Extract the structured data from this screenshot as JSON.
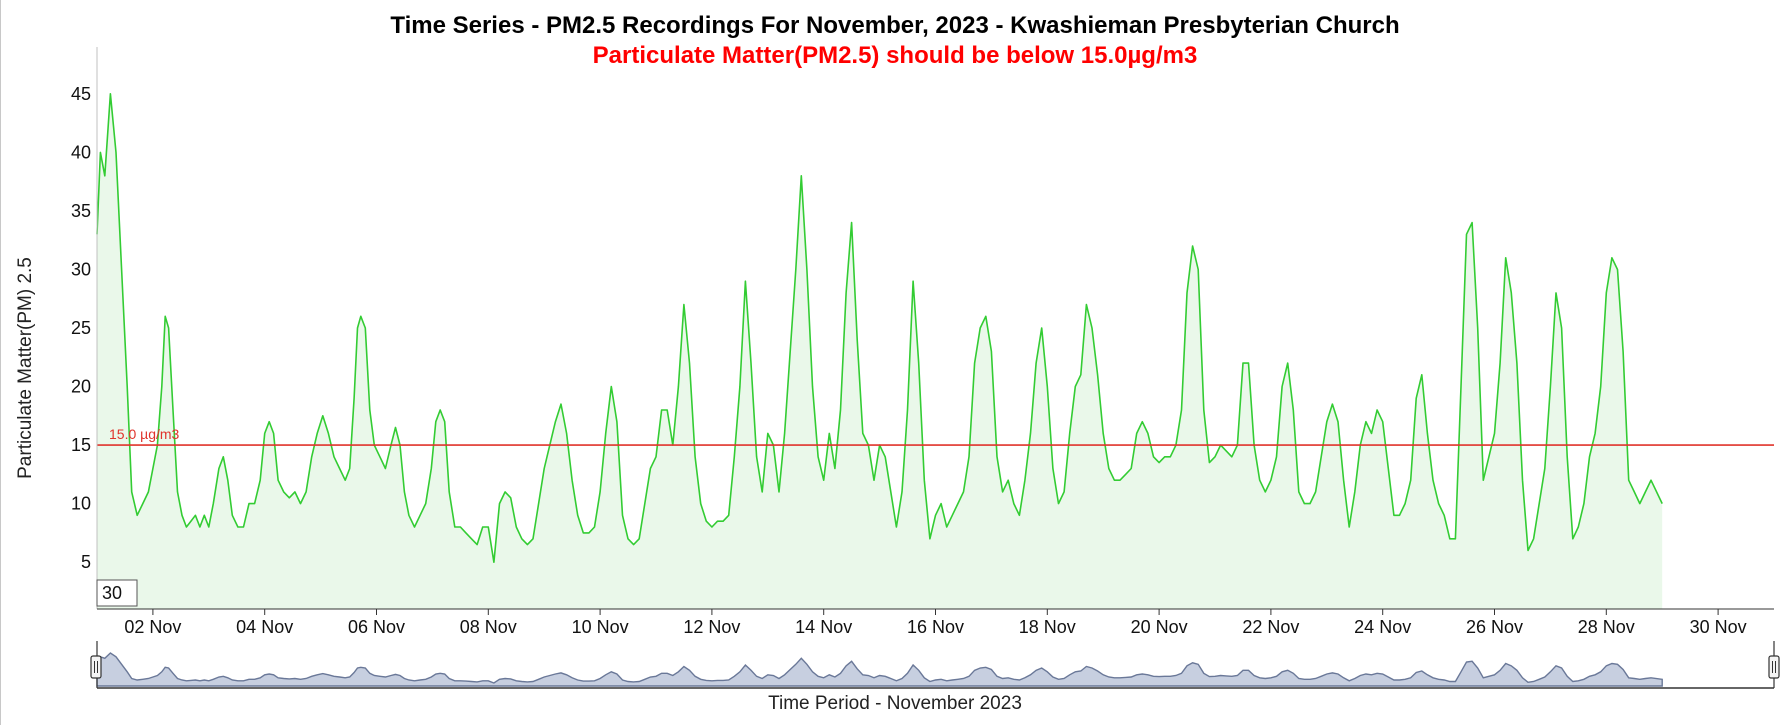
{
  "chart_data": {
    "type": "area",
    "title": "Time Series - PM2.5 Recordings For November, 2023 - Kwashieman Presbyterian Church",
    "subtitle": "Particulate Matter(PM2.5) should be below 15.0µg/m3",
    "ylabel": "Particulate Matter(PM) 2.5",
    "xlabel": "Time Period - November 2023",
    "ylim": [
      1,
      49
    ],
    "xlim_days": [
      1.0,
      31.0
    ],
    "y_ticks": [
      "5",
      "10",
      "15",
      "20",
      "25",
      "30",
      "35",
      "40",
      "45"
    ],
    "x_ticks": [
      "02 Nov",
      "04 Nov",
      "06 Nov",
      "08 Nov",
      "10 Nov",
      "12 Nov",
      "14 Nov",
      "16 Nov",
      "18 Nov",
      "20 Nov",
      "22 Nov",
      "24 Nov",
      "26 Nov",
      "28 Nov",
      "30 Nov"
    ],
    "grid": false,
    "line_color": "#33cc33",
    "fill_color": "#eaf8ea",
    "threshold": {
      "value": 15.0,
      "label": "15.0 µg/m3",
      "color": "#e0342c"
    },
    "series": [
      {
        "values": [
          [
            1.0,
            33
          ],
          [
            1.06,
            40
          ],
          [
            1.14,
            38
          ],
          [
            1.24,
            45
          ],
          [
            1.34,
            40
          ],
          [
            1.44,
            30
          ],
          [
            1.54,
            20
          ],
          [
            1.62,
            11
          ],
          [
            1.72,
            9
          ],
          [
            1.82,
            10
          ],
          [
            1.92,
            11
          ],
          [
            2.0,
            13
          ],
          [
            2.08,
            15
          ],
          [
            2.16,
            20
          ],
          [
            2.22,
            26
          ],
          [
            2.28,
            25
          ],
          [
            2.36,
            18
          ],
          [
            2.44,
            11
          ],
          [
            2.52,
            9
          ],
          [
            2.6,
            8
          ],
          [
            2.68,
            8.5
          ],
          [
            2.76,
            9
          ],
          [
            2.84,
            8
          ],
          [
            2.92,
            9
          ],
          [
            3.0,
            8
          ],
          [
            3.08,
            10
          ],
          [
            3.18,
            13
          ],
          [
            3.26,
            14
          ],
          [
            3.34,
            12
          ],
          [
            3.42,
            9
          ],
          [
            3.52,
            8
          ],
          [
            3.62,
            8
          ],
          [
            3.72,
            10
          ],
          [
            3.82,
            10
          ],
          [
            3.92,
            12
          ],
          [
            4.0,
            16
          ],
          [
            4.08,
            17
          ],
          [
            4.16,
            16
          ],
          [
            4.24,
            12
          ],
          [
            4.34,
            11
          ],
          [
            4.44,
            10.5
          ],
          [
            4.54,
            11
          ],
          [
            4.64,
            10
          ],
          [
            4.74,
            11
          ],
          [
            4.84,
            14
          ],
          [
            4.94,
            16
          ],
          [
            5.04,
            17.5
          ],
          [
            5.14,
            16
          ],
          [
            5.24,
            14
          ],
          [
            5.34,
            13
          ],
          [
            5.44,
            12
          ],
          [
            5.52,
            13
          ],
          [
            5.6,
            19
          ],
          [
            5.66,
            25
          ],
          [
            5.72,
            26
          ],
          [
            5.8,
            25
          ],
          [
            5.88,
            18
          ],
          [
            5.96,
            15
          ],
          [
            6.06,
            14
          ],
          [
            6.16,
            13
          ],
          [
            6.26,
            15
          ],
          [
            6.34,
            16.5
          ],
          [
            6.42,
            15
          ],
          [
            6.5,
            11
          ],
          [
            6.58,
            9
          ],
          [
            6.68,
            8
          ],
          [
            6.78,
            9
          ],
          [
            6.88,
            10
          ],
          [
            6.98,
            13
          ],
          [
            7.06,
            17
          ],
          [
            7.14,
            18
          ],
          [
            7.22,
            17
          ],
          [
            7.3,
            11
          ],
          [
            7.4,
            8
          ],
          [
            7.5,
            8
          ],
          [
            7.6,
            7.5
          ],
          [
            7.7,
            7
          ],
          [
            7.8,
            6.5
          ],
          [
            7.9,
            8
          ],
          [
            8.0,
            8
          ],
          [
            8.1,
            5
          ],
          [
            8.2,
            10
          ],
          [
            8.3,
            11
          ],
          [
            8.4,
            10.5
          ],
          [
            8.5,
            8
          ],
          [
            8.6,
            7
          ],
          [
            8.7,
            6.5
          ],
          [
            8.8,
            7
          ],
          [
            8.9,
            10
          ],
          [
            9.0,
            13
          ],
          [
            9.1,
            15
          ],
          [
            9.2,
            17
          ],
          [
            9.3,
            18.5
          ],
          [
            9.4,
            16
          ],
          [
            9.5,
            12
          ],
          [
            9.6,
            9
          ],
          [
            9.7,
            7.5
          ],
          [
            9.8,
            7.5
          ],
          [
            9.9,
            8
          ],
          [
            10.0,
            11
          ],
          [
            10.1,
            16
          ],
          [
            10.2,
            20
          ],
          [
            10.3,
            17
          ],
          [
            10.4,
            9
          ],
          [
            10.5,
            7
          ],
          [
            10.6,
            6.5
          ],
          [
            10.7,
            7
          ],
          [
            10.8,
            10
          ],
          [
            10.9,
            13
          ],
          [
            11.0,
            14
          ],
          [
            11.1,
            18
          ],
          [
            11.2,
            18
          ],
          [
            11.3,
            15
          ],
          [
            11.4,
            20
          ],
          [
            11.5,
            27
          ],
          [
            11.6,
            22
          ],
          [
            11.7,
            14
          ],
          [
            11.8,
            10
          ],
          [
            11.9,
            8.5
          ],
          [
            12.0,
            8
          ],
          [
            12.1,
            8.5
          ],
          [
            12.2,
            8.5
          ],
          [
            12.3,
            9
          ],
          [
            12.4,
            14
          ],
          [
            12.5,
            20
          ],
          [
            12.6,
            29
          ],
          [
            12.7,
            22
          ],
          [
            12.8,
            14
          ],
          [
            12.9,
            11
          ],
          [
            13.0,
            16
          ],
          [
            13.1,
            15
          ],
          [
            13.2,
            11
          ],
          [
            13.3,
            16
          ],
          [
            13.4,
            23
          ],
          [
            13.5,
            30
          ],
          [
            13.6,
            38
          ],
          [
            13.7,
            30
          ],
          [
            13.8,
            20
          ],
          [
            13.9,
            14
          ],
          [
            14.0,
            12
          ],
          [
            14.1,
            16
          ],
          [
            14.2,
            13
          ],
          [
            14.3,
            18
          ],
          [
            14.4,
            28
          ],
          [
            14.5,
            34
          ],
          [
            14.6,
            24
          ],
          [
            14.7,
            16
          ],
          [
            14.8,
            15
          ],
          [
            14.9,
            12
          ],
          [
            15.0,
            15
          ],
          [
            15.1,
            14
          ],
          [
            15.2,
            11
          ],
          [
            15.3,
            8
          ],
          [
            15.4,
            11
          ],
          [
            15.5,
            18
          ],
          [
            15.6,
            29
          ],
          [
            15.7,
            22
          ],
          [
            15.8,
            12
          ],
          [
            15.9,
            7
          ],
          [
            16.0,
            9
          ],
          [
            16.1,
            10
          ],
          [
            16.2,
            8
          ],
          [
            16.3,
            9
          ],
          [
            16.4,
            10
          ],
          [
            16.5,
            11
          ],
          [
            16.6,
            14
          ],
          [
            16.7,
            22
          ],
          [
            16.8,
            25
          ],
          [
            16.9,
            26
          ],
          [
            17.0,
            23
          ],
          [
            17.1,
            14
          ],
          [
            17.2,
            11
          ],
          [
            17.3,
            12
          ],
          [
            17.4,
            10
          ],
          [
            17.5,
            9
          ],
          [
            17.6,
            12
          ],
          [
            17.7,
            16
          ],
          [
            17.8,
            22
          ],
          [
            17.9,
            25
          ],
          [
            18.0,
            20
          ],
          [
            18.1,
            13
          ],
          [
            18.2,
            10
          ],
          [
            18.3,
            11
          ],
          [
            18.4,
            16
          ],
          [
            18.5,
            20
          ],
          [
            18.6,
            21
          ],
          [
            18.7,
            27
          ],
          [
            18.8,
            25
          ],
          [
            18.9,
            21
          ],
          [
            19.0,
            16
          ],
          [
            19.1,
            13
          ],
          [
            19.2,
            12
          ],
          [
            19.3,
            12
          ],
          [
            19.4,
            12.5
          ],
          [
            19.5,
            13
          ],
          [
            19.6,
            16
          ],
          [
            19.7,
            17
          ],
          [
            19.8,
            16
          ],
          [
            19.9,
            14
          ],
          [
            20.0,
            13.5
          ],
          [
            20.1,
            14
          ],
          [
            20.2,
            14
          ],
          [
            20.3,
            15
          ],
          [
            20.4,
            18
          ],
          [
            20.5,
            28
          ],
          [
            20.6,
            32
          ],
          [
            20.7,
            30
          ],
          [
            20.8,
            18
          ],
          [
            20.9,
            13.5
          ],
          [
            21.0,
            14
          ],
          [
            21.1,
            15
          ],
          [
            21.2,
            14.5
          ],
          [
            21.3,
            14
          ],
          [
            21.4,
            15
          ],
          [
            21.5,
            22
          ],
          [
            21.6,
            22
          ],
          [
            21.7,
            15
          ],
          [
            21.8,
            12
          ],
          [
            21.9,
            11
          ],
          [
            22.0,
            12
          ],
          [
            22.1,
            14
          ],
          [
            22.2,
            20
          ],
          [
            22.3,
            22
          ],
          [
            22.4,
            18
          ],
          [
            22.5,
            11
          ],
          [
            22.6,
            10
          ],
          [
            22.7,
            10
          ],
          [
            22.8,
            11
          ],
          [
            22.9,
            14
          ],
          [
            23.0,
            17
          ],
          [
            23.1,
            18.5
          ],
          [
            23.2,
            17
          ],
          [
            23.3,
            12
          ],
          [
            23.4,
            8
          ],
          [
            23.5,
            11
          ],
          [
            23.6,
            15
          ],
          [
            23.7,
            17
          ],
          [
            23.8,
            16
          ],
          [
            23.9,
            18
          ],
          [
            24.0,
            17
          ],
          [
            24.1,
            13
          ],
          [
            24.2,
            9
          ],
          [
            24.3,
            9
          ],
          [
            24.4,
            10
          ],
          [
            24.5,
            12
          ],
          [
            24.6,
            19
          ],
          [
            24.7,
            21
          ],
          [
            24.8,
            16
          ],
          [
            24.9,
            12
          ],
          [
            25.0,
            10
          ],
          [
            25.1,
            9
          ],
          [
            25.2,
            7
          ],
          [
            25.3,
            7
          ],
          [
            25.4,
            20
          ],
          [
            25.5,
            33
          ],
          [
            25.6,
            34
          ],
          [
            25.7,
            25
          ],
          [
            25.8,
            12
          ],
          [
            25.9,
            14
          ],
          [
            26.0,
            16
          ],
          [
            26.1,
            22
          ],
          [
            26.2,
            31
          ],
          [
            26.3,
            28
          ],
          [
            26.4,
            22
          ],
          [
            26.5,
            12
          ],
          [
            26.6,
            6
          ],
          [
            26.7,
            7
          ],
          [
            26.8,
            10
          ],
          [
            26.9,
            13
          ],
          [
            27.0,
            20
          ],
          [
            27.1,
            28
          ],
          [
            27.2,
            25
          ],
          [
            27.3,
            14
          ],
          [
            27.4,
            7
          ],
          [
            27.5,
            8
          ],
          [
            27.6,
            10
          ],
          [
            27.7,
            14
          ],
          [
            27.8,
            16
          ],
          [
            27.9,
            20
          ],
          [
            28.0,
            28
          ],
          [
            28.1,
            31
          ],
          [
            28.2,
            30
          ],
          [
            28.3,
            23
          ],
          [
            28.4,
            12
          ],
          [
            28.5,
            11
          ],
          [
            28.6,
            10
          ],
          [
            28.7,
            11
          ],
          [
            28.8,
            12
          ],
          [
            29.0,
            10
          ]
        ]
      }
    ]
  },
  "navigator": {
    "value_box": "30"
  }
}
